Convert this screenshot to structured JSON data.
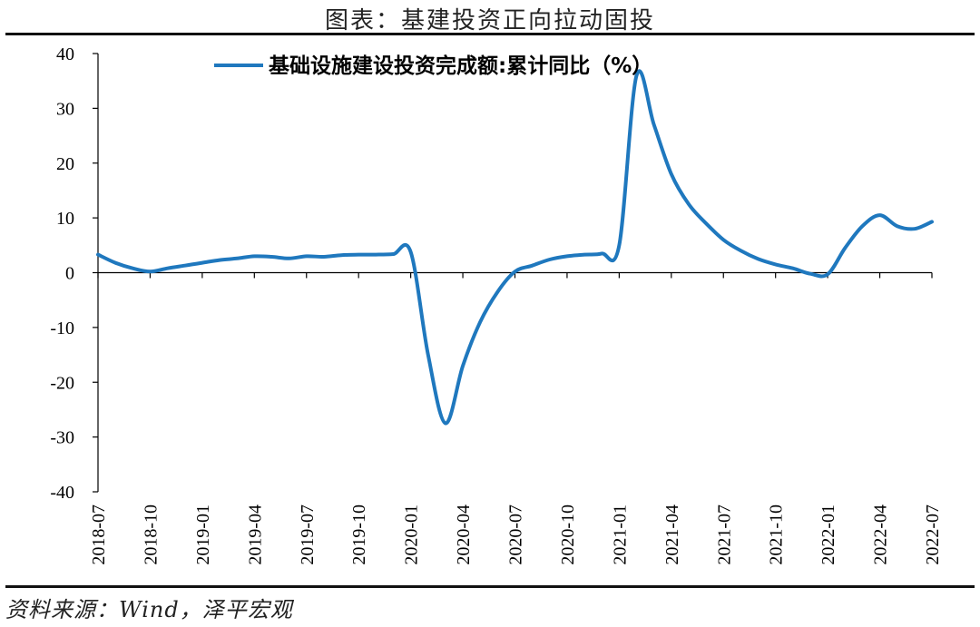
{
  "figure": {
    "title": "图表：基建投资正向拉动固投",
    "source": "资料来源：Wind，泽平宏观"
  },
  "colors": {
    "series": "#1F78BE",
    "axis": "#000000"
  },
  "chart_data": {
    "type": "line",
    "title": "",
    "xlabel": "",
    "ylabel": "",
    "ylim": [
      -40,
      40
    ],
    "yticks": [
      40,
      30,
      20,
      10,
      0,
      -10,
      -20,
      -30,
      -40
    ],
    "xticks": [
      "2018-07",
      "2018-10",
      "2019-01",
      "2019-04",
      "2019-07",
      "2019-10",
      "2020-01",
      "2020-04",
      "2020-07",
      "2020-10",
      "2021-01",
      "2021-04",
      "2021-07",
      "2021-10",
      "2022-01",
      "2022-04",
      "2022-07"
    ],
    "grid": false,
    "legend_position": "top",
    "series": [
      {
        "name": "基础设施建设投资完成额:累计同比（%）",
        "x": [
          "2018-07",
          "2018-08",
          "2018-09",
          "2018-10",
          "2018-11",
          "2018-12",
          "2019-01",
          "2019-02",
          "2019-03",
          "2019-04",
          "2019-05",
          "2019-06",
          "2019-07",
          "2019-08",
          "2019-09",
          "2019-10",
          "2019-11",
          "2019-12",
          "2020-01",
          "2020-02",
          "2020-03",
          "2020-04",
          "2020-05",
          "2020-06",
          "2020-07",
          "2020-08",
          "2020-09",
          "2020-10",
          "2020-11",
          "2020-12",
          "2021-01",
          "2021-02",
          "2021-03",
          "2021-04",
          "2021-05",
          "2021-06",
          "2021-07",
          "2021-08",
          "2021-09",
          "2021-10",
          "2021-11",
          "2021-12",
          "2022-01",
          "2022-02",
          "2022-03",
          "2022-04",
          "2022-05",
          "2022-06",
          "2022-07"
        ],
        "values": [
          3.3,
          1.8,
          0.8,
          0.2,
          0.8,
          1.3,
          1.8,
          2.3,
          2.6,
          3.0,
          2.9,
          2.6,
          3.0,
          2.9,
          3.2,
          3.3,
          3.3,
          3.4,
          3.8,
          -15.0,
          -27.5,
          -17.0,
          -9.0,
          -3.5,
          0.2,
          1.3,
          2.4,
          3.0,
          3.3,
          3.5,
          5.0,
          36.0,
          27.0,
          18.0,
          12.5,
          9.0,
          6.0,
          4.0,
          2.5,
          1.5,
          0.8,
          -0.2,
          -0.3,
          4.5,
          8.5,
          10.5,
          8.5,
          8.0,
          9.3
        ]
      }
    ]
  }
}
